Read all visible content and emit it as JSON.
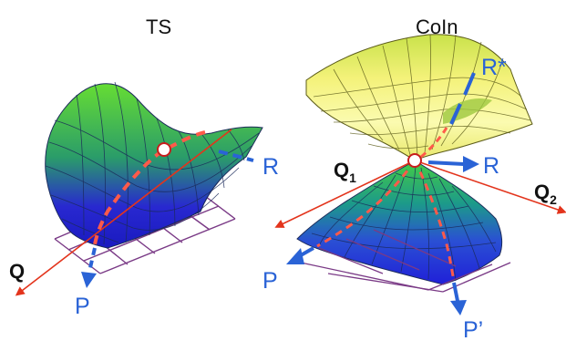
{
  "panels": {
    "left": {
      "title": "TS",
      "labels": {
        "R": "R",
        "P": "P",
        "Q": "Q"
      }
    },
    "right": {
      "title": "CoIn",
      "labels": {
        "R_star": "R*",
        "R": "R",
        "P": "P",
        "P_prime": "P’",
        "Q1": "Q",
        "Q1_sub": "1",
        "Q2": "Q",
        "Q2_sub": "2"
      }
    }
  },
  "colors": {
    "surface_low": "#2020d8",
    "surface_mid": "#1c9a8a",
    "surface_high": "#66dd33",
    "cone_top": "#f4f27a",
    "cone_top_light": "#fbfbb0",
    "cone_top_dark": "#9ec840",
    "grid": "#7a3a86",
    "axis": "#e3341c",
    "path_dash": "#ff5a4a",
    "path_arrow": "#2a63d6",
    "point_fill": "#ffffff",
    "point_stroke": "#c81c1c"
  }
}
